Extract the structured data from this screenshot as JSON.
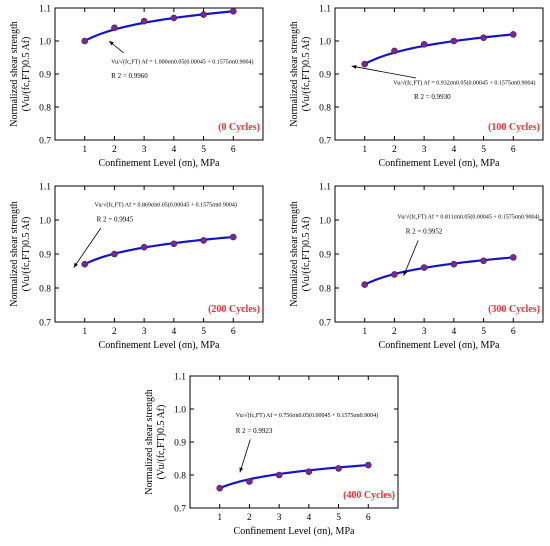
{
  "chart_data": [
    {
      "type": "line",
      "x": [
        1,
        2,
        3,
        4,
        5,
        6
      ],
      "y": [
        1.0,
        1.04,
        1.06,
        1.07,
        1.08,
        1.09
      ],
      "xlim": [
        0,
        7
      ],
      "ylim": [
        0.7,
        1.1
      ],
      "xticks": [
        "1",
        "2",
        "3",
        "4",
        "5",
        "6"
      ],
      "yticks": [
        "0.7",
        "0.8",
        "0.9",
        "1.0",
        "1.1"
      ],
      "xlabel": "Confinement Level (σn), MPa",
      "ylabel_line1": "Normalized shear strength",
      "ylabel_line2": "(Vu/(fc,FT)0.5 Af)",
      "cycles_label": "(0 Cycles)",
      "equation": "Vu/√(fc,FT) Af = 1.000σn0.05(0.00045 + 0.1575σn0.9004)",
      "r2": "R 2 = 0.9960",
      "coef": 1.0
    },
    {
      "type": "line",
      "x": [
        1,
        2,
        3,
        4,
        5,
        6
      ],
      "y": [
        0.93,
        0.97,
        0.99,
        1.0,
        1.01,
        1.02
      ],
      "xlim": [
        0,
        7
      ],
      "ylim": [
        0.7,
        1.1
      ],
      "xticks": [
        "1",
        "2",
        "3",
        "4",
        "5",
        "6"
      ],
      "yticks": [
        "0.7",
        "0.8",
        "0.9",
        "1.0",
        "1.1"
      ],
      "xlabel": "Confinement Level (σn), MPa",
      "ylabel_line1": "Normalized shear strength",
      "ylabel_line2": "(Vu/(fc,FT)0.5 Af)",
      "cycles_label": "(100 Cycles)",
      "equation": "Vu/√(fc,FT) Af = 0.932σn0.05(0.00045 + 0.1575σn0.9004)",
      "r2": "R 2 = 0.9930",
      "coef": 0.932
    },
    {
      "type": "line",
      "x": [
        1,
        2,
        3,
        4,
        5,
        6
      ],
      "y": [
        0.87,
        0.9,
        0.92,
        0.93,
        0.94,
        0.95
      ],
      "xlim": [
        0,
        7
      ],
      "ylim": [
        0.7,
        1.1
      ],
      "xticks": [
        "1",
        "2",
        "3",
        "4",
        "5",
        "6"
      ],
      "yticks": [
        "0.7",
        "0.8",
        "0.9",
        "1.0",
        "1.1"
      ],
      "xlabel": "Confinement Level (σn), MPa",
      "ylabel_line1": "Normalized shear strength",
      "ylabel_line2": "(Vu/(fc,FT)0.5 Af)",
      "cycles_label": "(200 Cycles)",
      "equation": "Vu/√(fc,FT) Af = 0.869σn0.05(0.00045 + 0.1575σn0.9004)",
      "r2": "R 2 = 0.9945",
      "coef": 0.869
    },
    {
      "type": "line",
      "x": [
        1,
        2,
        3,
        4,
        5,
        6
      ],
      "y": [
        0.81,
        0.84,
        0.86,
        0.87,
        0.88,
        0.89
      ],
      "xlim": [
        0,
        7
      ],
      "ylim": [
        0.7,
        1.1
      ],
      "xticks": [
        "1",
        "2",
        "3",
        "4",
        "5",
        "6"
      ],
      "yticks": [
        "0.7",
        "0.8",
        "0.9",
        "1.0",
        "1.1"
      ],
      "xlabel": "Confinement Level (σn), MPa",
      "ylabel_line1": "Normalized shear strength",
      "ylabel_line2": "(Vu/(fc,FT)0.5 Af)",
      "cycles_label": "(300 Cycles)",
      "equation": "Vu/√(fc,FT) Af = 0.811σn0.05(0.00045 + 0.1575σn0.9004)",
      "r2": "R 2 = 0.9952",
      "coef": 0.811
    },
    {
      "type": "line",
      "x": [
        1,
        2,
        3,
        4,
        5,
        6
      ],
      "y": [
        0.76,
        0.78,
        0.8,
        0.81,
        0.82,
        0.83
      ],
      "xlim": [
        0,
        7
      ],
      "ylim": [
        0.7,
        1.1
      ],
      "xticks": [
        "1",
        "2",
        "3",
        "4",
        "5",
        "6"
      ],
      "yticks": [
        "0.7",
        "0.8",
        "0.9",
        "1.0",
        "1.1"
      ],
      "xlabel": "Confinement Level (σn), MPa",
      "ylabel_line1": "Normalized shear strength",
      "ylabel_line2": "(Vu/(fc,FT)0.5 Af)",
      "cycles_label": "(400 Cycles)",
      "equation": "Vu/√(fc,FT) Af = 0.756σn0.05(0.00045 + 0.1575σn0.9004)",
      "r2": "R 2 = 0.9923",
      "coef": 0.756
    }
  ],
  "colors": {
    "fit_line": "#1515c8",
    "points": "#7a2a8e",
    "cycles_text": "#e8323a"
  }
}
